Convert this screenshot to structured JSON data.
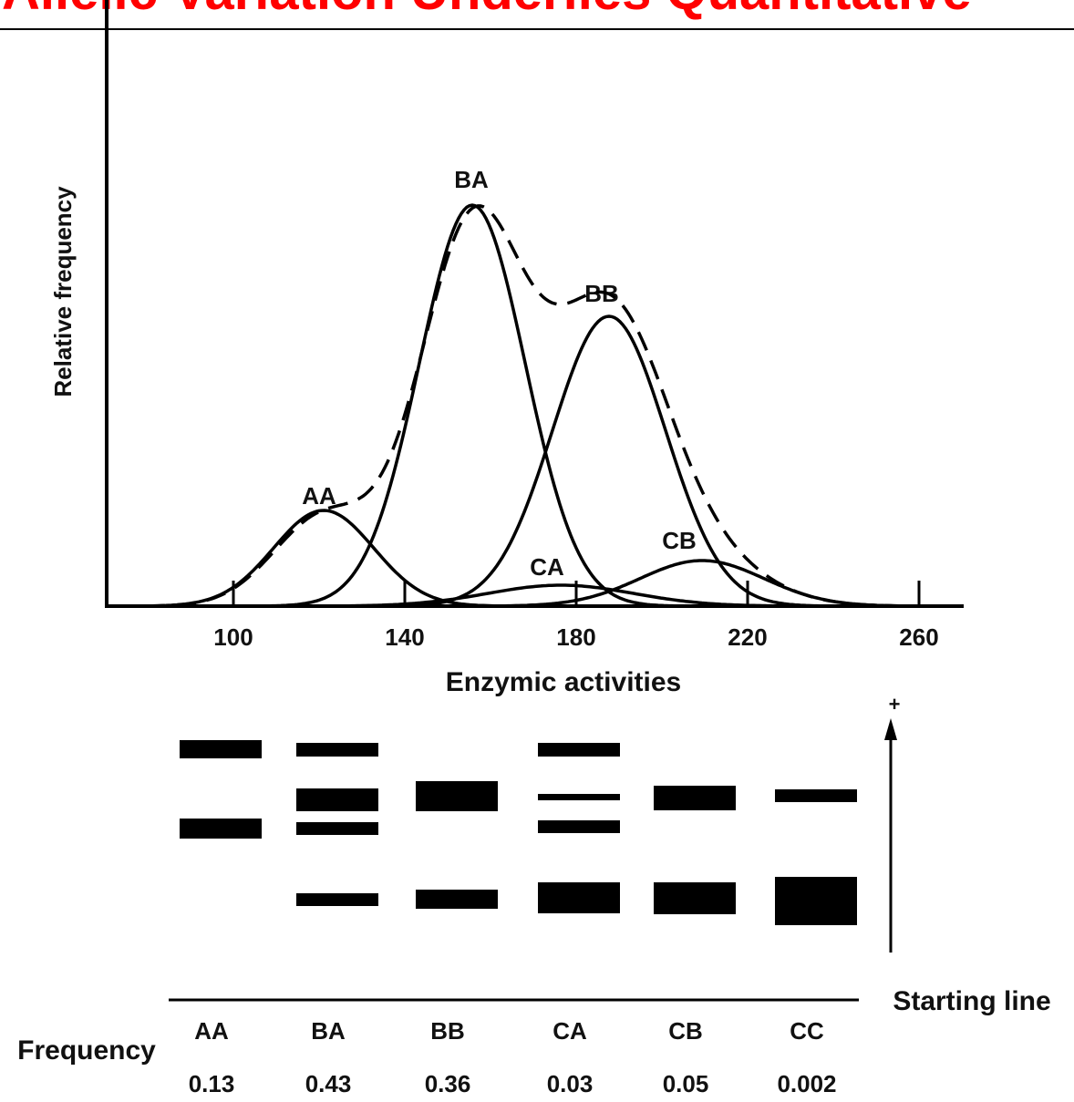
{
  "header": {
    "title": "Allelic Variation Underlies Quantitative"
  },
  "plot": {
    "y_label": "Relative frequency",
    "x_label": "Enzymic activities",
    "xlim": [
      70,
      270
    ],
    "xticks": [
      100,
      140,
      180,
      220,
      260
    ],
    "curve_labels": [
      "AA",
      "BA",
      "BB",
      "CA",
      "CB"
    ]
  },
  "gel": {
    "plus": "+",
    "starting_line": "Starting line",
    "frequency_label": "Frequency",
    "genotypes": [
      "AA",
      "BA",
      "BB",
      "CA",
      "CB",
      "CC"
    ],
    "frequencies": [
      "0.13",
      "0.43",
      "0.36",
      "0.03",
      "0.05",
      "0.002"
    ]
  }
}
